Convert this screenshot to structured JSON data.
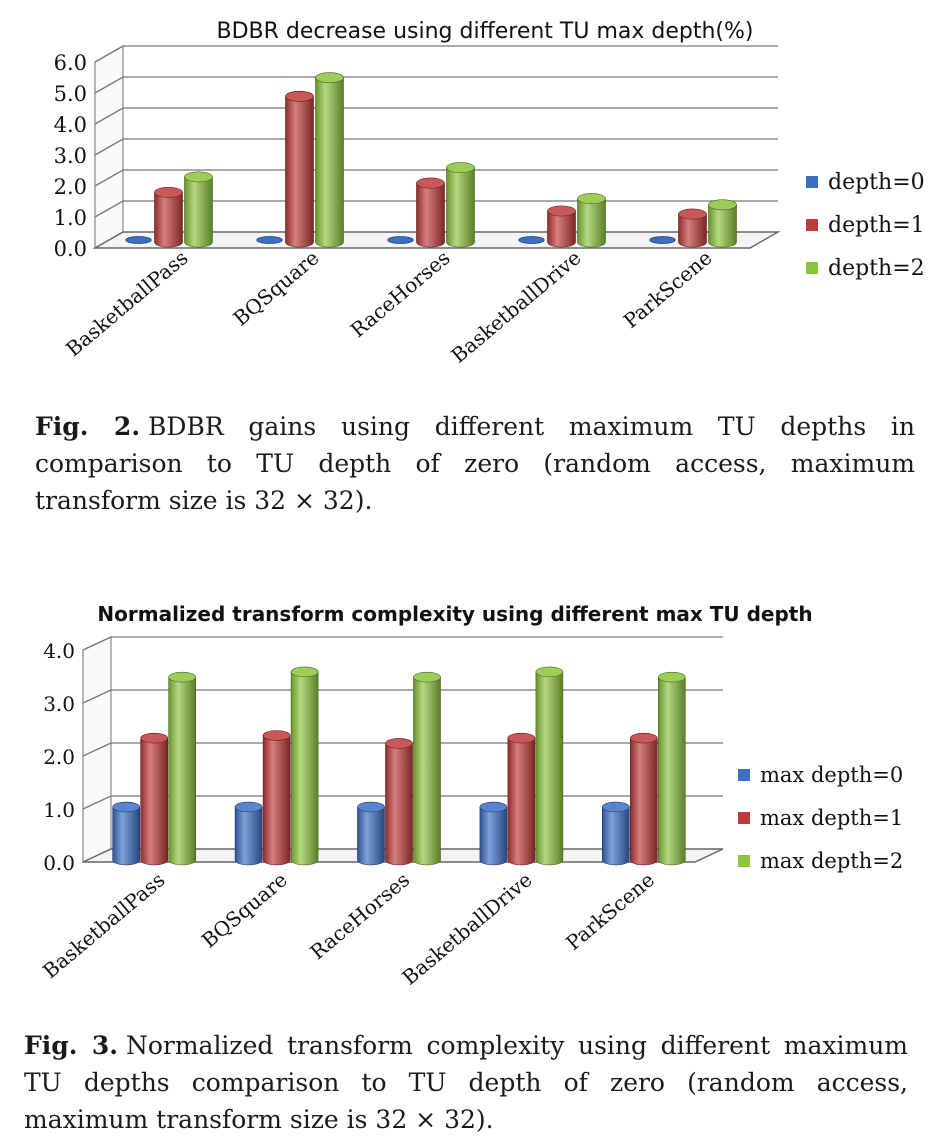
{
  "chart_data": [
    {
      "type": "bar",
      "title": "BDBR decrease using different TU max depth(%)",
      "categories": [
        "BasketballPass",
        "BQSquare",
        "RaceHorses",
        "BasketballDrive",
        "ParkScene"
      ],
      "series": [
        {
          "name": "depth=0",
          "values": [
            0.0,
            0.0,
            0.0,
            0.0,
            0.0
          ]
        },
        {
          "name": "depth=1",
          "values": [
            1.6,
            4.7,
            1.9,
            1.0,
            0.9
          ]
        },
        {
          "name": "depth=2",
          "values": [
            2.1,
            5.3,
            2.4,
            1.4,
            1.2
          ]
        }
      ],
      "yticks": [
        "0.0",
        "1.0",
        "2.0",
        "3.0",
        "4.0",
        "5.0",
        "6.0"
      ],
      "ylim": [
        0,
        6
      ],
      "xlabel": "",
      "ylabel": "",
      "grid": true,
      "legend_position": "right",
      "colors": [
        "#3a6fc4",
        "#c03a3a",
        "#8cc43c"
      ]
    },
    {
      "type": "bar",
      "title": "Normalized transform  complexity  using different  max TU depth",
      "categories": [
        "BasketballPass",
        "BQSquare",
        "RaceHorses",
        "BasketballDrive",
        "ParkScene"
      ],
      "series": [
        {
          "name": "max depth=0",
          "values": [
            1.0,
            1.0,
            1.0,
            1.0,
            1.0
          ]
        },
        {
          "name": "max depth=1",
          "values": [
            2.3,
            2.35,
            2.2,
            2.3,
            2.3
          ]
        },
        {
          "name": "max depth=2",
          "values": [
            3.45,
            3.55,
            3.45,
            3.55,
            3.45
          ]
        }
      ],
      "yticks": [
        "0.0",
        "1.0",
        "2.0",
        "3.0",
        "4.0"
      ],
      "ylim": [
        0,
        4
      ],
      "xlabel": "",
      "ylabel": "",
      "grid": true,
      "legend_position": "right",
      "colors": [
        "#3a6fc4",
        "#c03a3a",
        "#8cc43c"
      ]
    }
  ],
  "captions": [
    {
      "label": "Fig. 2.",
      "text": "BDBR gains using different maximum TU depths in comparison to TU depth of zero (random access, maximum transform size is 32 × 32)."
    },
    {
      "label": "Fig. 3.",
      "text": "Normalized transform complexity using different maximum TU depths comparison to TU depth of zero (random access, maximum transform size is 32 × 32)."
    }
  ]
}
